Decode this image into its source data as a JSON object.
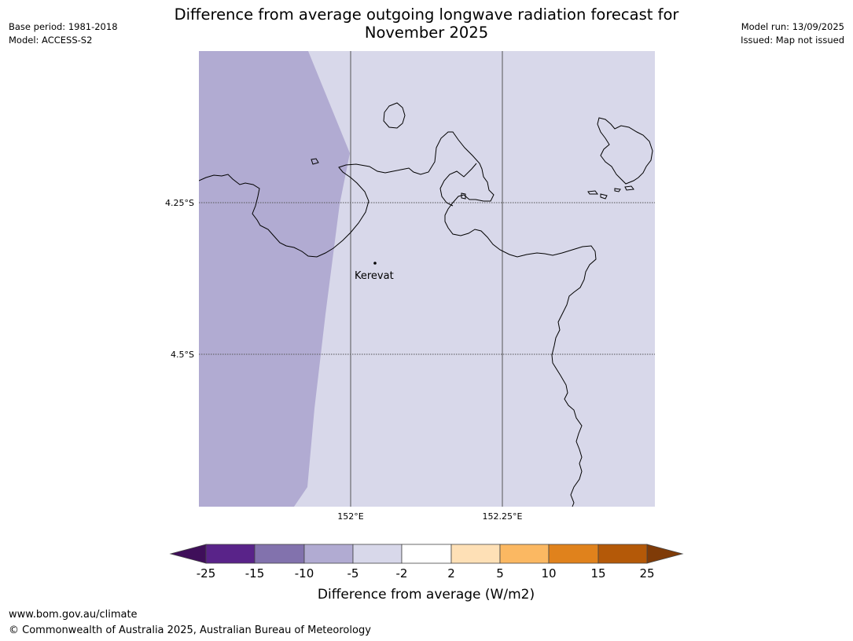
{
  "header": {
    "title_line1": "Difference from average outgoing longwave radiation forecast for",
    "title_line2": "November 2025",
    "base_period": "Base period: 1981-2018",
    "model": "Model: ACCESS-S2",
    "model_run": "Model run: 13/09/2025",
    "issued": "Issued: Map not issued"
  },
  "map": {
    "lat_labels": [
      "4.25°S",
      "4.5°S"
    ],
    "lon_labels": [
      "152°E",
      "152.25°E"
    ],
    "place": "Kerevat",
    "colors": {
      "region_minus_10_to_minus_5": "#b1abd2",
      "region_minus_5_to_minus_2": "#d8d8ea",
      "coastline": "#000000",
      "gridline": "#555555"
    }
  },
  "legend": {
    "title": "Difference from average (W/m2)",
    "ticks": [
      "-25",
      "-15",
      "-10",
      "-5",
      "-2",
      "2",
      "5",
      "10",
      "15",
      "25"
    ],
    "colors": [
      "#3f0f5a",
      "#592389",
      "#8272ad",
      "#b1abd2",
      "#d8d8ea",
      "#ffffff",
      "#fee0b6",
      "#fbb862",
      "#e0821c",
      "#b45908",
      "#7f3b08"
    ]
  },
  "footer": {
    "url": "www.bom.gov.au/climate",
    "copyright": "© Commonwealth of Australia 2025, Australian Bureau of Meteorology"
  }
}
